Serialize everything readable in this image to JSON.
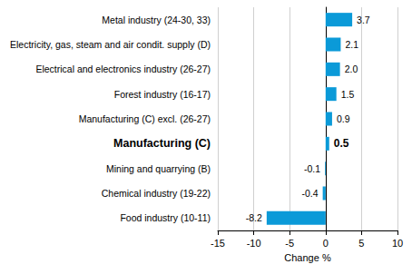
{
  "chart_data": {
    "type": "bar",
    "orientation": "horizontal",
    "categories": [
      "Metal industry (24-30, 33)",
      "Electricity, gas, steam and air condit. supply (D)",
      "Electrical and electronics industry (26-27)",
      "Forest industry (16-17)",
      "Manufacturing (C) excl. (26-27)",
      "Manufacturing (C)",
      "Mining and quarrying (B)",
      "Chemical industry (19-22)",
      "Food industry (10-11)"
    ],
    "values": [
      3.7,
      2.1,
      2.0,
      1.5,
      0.9,
      0.5,
      -0.1,
      -0.4,
      -8.2
    ],
    "value_labels": [
      "3.7",
      "2.1",
      "2.0",
      "1.5",
      "0.9",
      "0.5",
      "-0.1",
      "-0.4",
      "-8.2"
    ],
    "color": "#0b9ad8",
    "xlabel": "Change %",
    "xlim": [
      -15,
      10
    ],
    "xticks": [
      -15,
      -10,
      -5,
      0,
      5,
      10
    ],
    "grid": true,
    "data_labels": true
  }
}
